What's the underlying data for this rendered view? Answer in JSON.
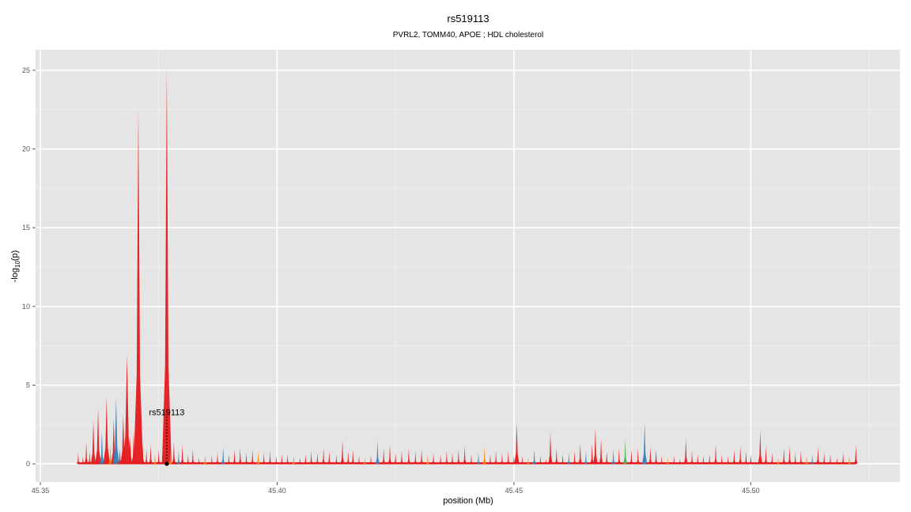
{
  "chart_data": {
    "type": "area",
    "title": "rs519113",
    "subtitle": "PVRL2, TOMM40, APOE ; HDL cholesterol",
    "xlabel": "position (Mb)",
    "ylabel_main": "-log",
    "ylabel_sub": "10",
    "ylabel_tail": "(p)",
    "xlim": [
      45.349,
      45.5315
    ],
    "ylim": [
      -1.15,
      26.3
    ],
    "x_ticks": [
      45.35,
      45.4,
      45.45,
      45.5
    ],
    "x_tick_labels": [
      "45.35",
      "45.40",
      "45.45",
      "45.50"
    ],
    "y_ticks": [
      0,
      5,
      10,
      15,
      20,
      25
    ],
    "y_tick_labels": [
      "0",
      "5",
      "10",
      "15",
      "20",
      "25"
    ],
    "grid": true,
    "background": "#e5e5e5",
    "lead_snp": {
      "label": "rs519113",
      "x": 45.3767,
      "y": 0
    },
    "colors": {
      "red": "#e41a1c",
      "blue": "#377eb8",
      "orange": "#ff7f00",
      "green": "#4daf4a",
      "purple": "#984ea3"
    },
    "peaks": [
      {
        "x": 45.358,
        "y": 0.7,
        "c": "red"
      },
      {
        "x": 45.359,
        "y": 0.5,
        "c": "red"
      },
      {
        "x": 45.3597,
        "y": 1.4,
        "c": "red"
      },
      {
        "x": 45.3604,
        "y": 0.8,
        "c": "red"
      },
      {
        "x": 45.3612,
        "y": 2.8,
        "c": "red"
      },
      {
        "x": 45.3622,
        "y": 3.5,
        "c": "red"
      },
      {
        "x": 45.363,
        "y": 2.1,
        "c": "blue"
      },
      {
        "x": 45.364,
        "y": 4.2,
        "c": "red"
      },
      {
        "x": 45.3648,
        "y": 1.2,
        "c": "orange"
      },
      {
        "x": 45.3655,
        "y": 2.9,
        "c": "red"
      },
      {
        "x": 45.366,
        "y": 4.2,
        "c": "blue"
      },
      {
        "x": 45.3668,
        "y": 1.0,
        "c": "red"
      },
      {
        "x": 45.3675,
        "y": 3.2,
        "c": "red"
      },
      {
        "x": 45.3683,
        "y": 6.9,
        "c": "red"
      },
      {
        "x": 45.369,
        "y": 1.8,
        "c": "red"
      },
      {
        "x": 45.3697,
        "y": 2.0,
        "c": "red"
      },
      {
        "x": 45.3707,
        "y": 22.6,
        "c": "red"
      },
      {
        "x": 45.3716,
        "y": 1.3,
        "c": "red"
      },
      {
        "x": 45.3724,
        "y": 0.9,
        "c": "red"
      },
      {
        "x": 45.3733,
        "y": 1.2,
        "c": "red"
      },
      {
        "x": 45.3742,
        "y": 0.6,
        "c": "orange"
      },
      {
        "x": 45.375,
        "y": 0.9,
        "c": "red"
      },
      {
        "x": 45.3758,
        "y": 0.7,
        "c": "red"
      },
      {
        "x": 45.3767,
        "y": 25.1,
        "c": "red"
      },
      {
        "x": 45.3775,
        "y": 0.8,
        "c": "orange"
      },
      {
        "x": 45.3782,
        "y": 1.4,
        "c": "red"
      },
      {
        "x": 45.3792,
        "y": 0.8,
        "c": "blue"
      },
      {
        "x": 45.38,
        "y": 1.2,
        "c": "red"
      },
      {
        "x": 45.3812,
        "y": 0.6,
        "c": "red"
      },
      {
        "x": 45.3822,
        "y": 0.9,
        "c": "red"
      },
      {
        "x": 45.3835,
        "y": 0.4,
        "c": "red"
      },
      {
        "x": 45.3848,
        "y": 0.6,
        "c": "orange"
      },
      {
        "x": 45.3862,
        "y": 0.5,
        "c": "red"
      },
      {
        "x": 45.3874,
        "y": 0.7,
        "c": "red"
      },
      {
        "x": 45.3886,
        "y": 1.1,
        "c": "blue"
      },
      {
        "x": 45.3898,
        "y": 0.6,
        "c": "red"
      },
      {
        "x": 45.391,
        "y": 0.9,
        "c": "red"
      },
      {
        "x": 45.3922,
        "y": 1.0,
        "c": "red"
      },
      {
        "x": 45.3935,
        "y": 0.7,
        "c": "red"
      },
      {
        "x": 45.3948,
        "y": 0.9,
        "c": "red"
      },
      {
        "x": 45.396,
        "y": 0.8,
        "c": "orange"
      },
      {
        "x": 45.3972,
        "y": 0.7,
        "c": "red"
      },
      {
        "x": 45.3985,
        "y": 0.8,
        "c": "red"
      },
      {
        "x": 45.3998,
        "y": 0.5,
        "c": "red"
      },
      {
        "x": 45.401,
        "y": 0.6,
        "c": "red"
      },
      {
        "x": 45.4022,
        "y": 0.6,
        "c": "red"
      },
      {
        "x": 45.4035,
        "y": 0.5,
        "c": "orange"
      },
      {
        "x": 45.4048,
        "y": 0.4,
        "c": "red"
      },
      {
        "x": 45.406,
        "y": 0.6,
        "c": "red"
      },
      {
        "x": 45.4072,
        "y": 0.8,
        "c": "red"
      },
      {
        "x": 45.4085,
        "y": 0.7,
        "c": "red"
      },
      {
        "x": 45.4098,
        "y": 1.0,
        "c": "red"
      },
      {
        "x": 45.411,
        "y": 0.8,
        "c": "red"
      },
      {
        "x": 45.4125,
        "y": 0.6,
        "c": "red"
      },
      {
        "x": 45.4138,
        "y": 1.5,
        "c": "red"
      },
      {
        "x": 45.415,
        "y": 0.8,
        "c": "red"
      },
      {
        "x": 45.416,
        "y": 0.9,
        "c": "red"
      },
      {
        "x": 45.4173,
        "y": 0.5,
        "c": "red"
      },
      {
        "x": 45.4185,
        "y": 0.4,
        "c": "orange"
      },
      {
        "x": 45.4198,
        "y": 0.5,
        "c": "red"
      },
      {
        "x": 45.4212,
        "y": 1.5,
        "c": "blue"
      },
      {
        "x": 45.4225,
        "y": 1.0,
        "c": "red"
      },
      {
        "x": 45.4238,
        "y": 1.2,
        "c": "red"
      },
      {
        "x": 45.425,
        "y": 0.7,
        "c": "red"
      },
      {
        "x": 45.4263,
        "y": 0.8,
        "c": "red"
      },
      {
        "x": 45.4278,
        "y": 1.0,
        "c": "red"
      },
      {
        "x": 45.4292,
        "y": 0.8,
        "c": "red"
      },
      {
        "x": 45.4305,
        "y": 0.9,
        "c": "red"
      },
      {
        "x": 45.4318,
        "y": 0.6,
        "c": "orange"
      },
      {
        "x": 45.433,
        "y": 0.7,
        "c": "red"
      },
      {
        "x": 45.4345,
        "y": 0.6,
        "c": "red"
      },
      {
        "x": 45.4358,
        "y": 0.8,
        "c": "red"
      },
      {
        "x": 45.437,
        "y": 0.7,
        "c": "red"
      },
      {
        "x": 45.4383,
        "y": 0.9,
        "c": "red"
      },
      {
        "x": 45.4396,
        "y": 1.1,
        "c": "red"
      },
      {
        "x": 45.441,
        "y": 0.6,
        "c": "red"
      },
      {
        "x": 45.4425,
        "y": 0.7,
        "c": "blue"
      },
      {
        "x": 45.4438,
        "y": 1.1,
        "c": "orange"
      },
      {
        "x": 45.445,
        "y": 0.6,
        "c": "red"
      },
      {
        "x": 45.4462,
        "y": 0.8,
        "c": "red"
      },
      {
        "x": 45.4475,
        "y": 0.7,
        "c": "red"
      },
      {
        "x": 45.4488,
        "y": 0.8,
        "c": "red"
      },
      {
        "x": 45.45,
        "y": 0.5,
        "c": "red"
      },
      {
        "x": 45.4506,
        "y": 2.6,
        "c": "red"
      },
      {
        "x": 45.4518,
        "y": 0.5,
        "c": "red"
      },
      {
        "x": 45.453,
        "y": 0.4,
        "c": "orange"
      },
      {
        "x": 45.4543,
        "y": 0.9,
        "c": "blue"
      },
      {
        "x": 45.4556,
        "y": 0.5,
        "c": "red"
      },
      {
        "x": 45.4568,
        "y": 0.3,
        "c": "red"
      },
      {
        "x": 45.4577,
        "y": 2.0,
        "c": "red"
      },
      {
        "x": 45.459,
        "y": 1.0,
        "c": "red"
      },
      {
        "x": 45.4603,
        "y": 0.6,
        "c": "red"
      },
      {
        "x": 45.4616,
        "y": 0.7,
        "c": "blue"
      },
      {
        "x": 45.4628,
        "y": 0.8,
        "c": "red"
      },
      {
        "x": 45.464,
        "y": 1.3,
        "c": "red"
      },
      {
        "x": 45.4652,
        "y": 0.8,
        "c": "blue"
      },
      {
        "x": 45.4665,
        "y": 1.3,
        "c": "red"
      },
      {
        "x": 45.4672,
        "y": 2.3,
        "c": "red"
      },
      {
        "x": 45.4684,
        "y": 1.6,
        "c": "red"
      },
      {
        "x": 45.4696,
        "y": 0.8,
        "c": "red"
      },
      {
        "x": 45.471,
        "y": 0.9,
        "c": "blue"
      },
      {
        "x": 45.4722,
        "y": 1.0,
        "c": "red"
      },
      {
        "x": 45.4735,
        "y": 1.6,
        "c": "green"
      },
      {
        "x": 45.4748,
        "y": 0.9,
        "c": "red"
      },
      {
        "x": 45.4762,
        "y": 1.0,
        "c": "red"
      },
      {
        "x": 45.4776,
        "y": 2.6,
        "c": "blue"
      },
      {
        "x": 45.4788,
        "y": 1.1,
        "c": "red"
      },
      {
        "x": 45.48,
        "y": 0.9,
        "c": "red"
      },
      {
        "x": 45.4812,
        "y": 0.5,
        "c": "red"
      },
      {
        "x": 45.4825,
        "y": 0.4,
        "c": "orange"
      },
      {
        "x": 45.4838,
        "y": 0.5,
        "c": "red"
      },
      {
        "x": 45.485,
        "y": 0.3,
        "c": "red"
      },
      {
        "x": 45.4863,
        "y": 1.6,
        "c": "red"
      },
      {
        "x": 45.4876,
        "y": 0.8,
        "c": "red"
      },
      {
        "x": 45.4888,
        "y": 0.6,
        "c": "red"
      },
      {
        "x": 45.49,
        "y": 0.5,
        "c": "red"
      },
      {
        "x": 45.4913,
        "y": 0.6,
        "c": "red"
      },
      {
        "x": 45.4926,
        "y": 1.2,
        "c": "red"
      },
      {
        "x": 45.4939,
        "y": 0.6,
        "c": "red"
      },
      {
        "x": 45.4952,
        "y": 0.5,
        "c": "red"
      },
      {
        "x": 45.4965,
        "y": 0.9,
        "c": "red"
      },
      {
        "x": 45.4978,
        "y": 1.1,
        "c": "red"
      },
      {
        "x": 45.499,
        "y": 0.8,
        "c": "red"
      },
      {
        "x": 45.5,
        "y": 0.6,
        "c": "red"
      },
      {
        "x": 45.502,
        "y": 2.1,
        "c": "red"
      },
      {
        "x": 45.5032,
        "y": 1.1,
        "c": "red"
      },
      {
        "x": 45.5045,
        "y": 0.7,
        "c": "red"
      },
      {
        "x": 45.5058,
        "y": 0.4,
        "c": "orange"
      },
      {
        "x": 45.507,
        "y": 1.0,
        "c": "red"
      },
      {
        "x": 45.5082,
        "y": 1.1,
        "c": "red"
      },
      {
        "x": 45.5094,
        "y": 0.7,
        "c": "red"
      },
      {
        "x": 45.5106,
        "y": 0.8,
        "c": "red"
      },
      {
        "x": 45.5118,
        "y": 0.5,
        "c": "orange"
      },
      {
        "x": 45.513,
        "y": 0.6,
        "c": "blue"
      },
      {
        "x": 45.5142,
        "y": 1.1,
        "c": "red"
      },
      {
        "x": 45.5155,
        "y": 0.7,
        "c": "red"
      },
      {
        "x": 45.5168,
        "y": 0.6,
        "c": "red"
      },
      {
        "x": 45.5182,
        "y": 0.4,
        "c": "red"
      },
      {
        "x": 45.5195,
        "y": 0.7,
        "c": "red"
      },
      {
        "x": 45.5208,
        "y": 0.5,
        "c": "orange"
      },
      {
        "x": 45.5222,
        "y": 1.2,
        "c": "red"
      }
    ]
  }
}
